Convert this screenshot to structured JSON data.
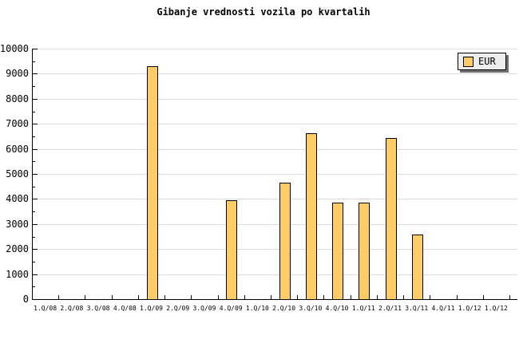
{
  "title": "Gibanje vrednosti vozila po kvartalih",
  "legend": {
    "label": "EUR"
  },
  "colors": {
    "background": "#FFFFFF",
    "bar_fill": "#FFCC66",
    "bar_border": "#000000",
    "gridline": "#DCDCDC",
    "axis": "#000000",
    "text": "#000000",
    "legend_bg": "#EDEDED",
    "legend_border": "#000000",
    "legend_shadow": "#707070"
  },
  "chart_data": {
    "type": "bar",
    "title": "Gibanje vrednosti vozila po kvartalih",
    "categories": [
      "1.Q/08",
      "2.Q/08",
      "3.Q/08",
      "4.Q/08",
      "1.Q/09",
      "2.Q/09",
      "3.Q/09",
      "4.Q/09",
      "1.Q/10",
      "2.Q/10",
      "3.Q/10",
      "4.Q/10",
      "1.Q/11",
      "2.Q/11",
      "3.Q/11",
      "4.Q/11",
      "1.Q/12",
      "1.Q/12"
    ],
    "series": [
      {
        "name": "EUR",
        "color": "#FFCC66",
        "values": [
          null,
          null,
          null,
          null,
          9280,
          null,
          null,
          3930,
          null,
          4620,
          6600,
          3830,
          3830,
          6400,
          2560,
          null,
          null,
          null
        ]
      }
    ],
    "xlabel": "",
    "ylabel": "",
    "ylim": [
      0,
      10000
    ],
    "y_tick_step": 1000,
    "y_minor_tick_step": 500,
    "grid": "horizontal-only",
    "legend_position": "top-right"
  }
}
